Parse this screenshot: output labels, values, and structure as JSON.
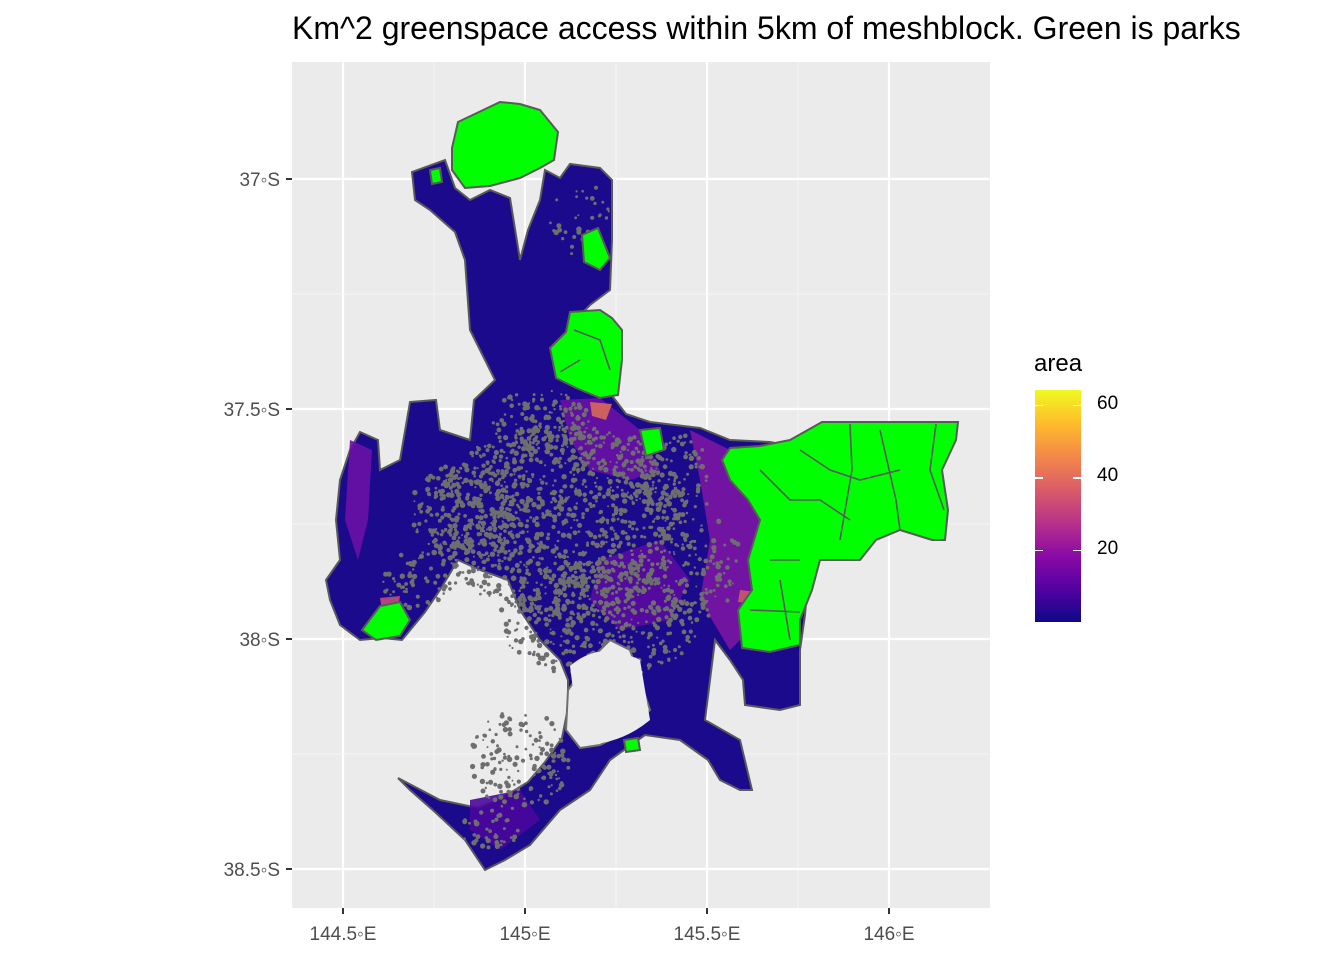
{
  "title": "Km^2 greenspace access within 5km of meshblock. Green is parks",
  "legend": {
    "title": "area",
    "ticks": [
      "20",
      "40",
      "60"
    ],
    "scale": {
      "min": 0,
      "max": 64,
      "colors": [
        "#0d0887",
        "#5302a3",
        "#8b0aa5",
        "#b83289",
        "#db5c68",
        "#f48849",
        "#febd2a",
        "#f0f921"
      ]
    }
  },
  "axes": {
    "x_ticks": [
      {
        "value": 144.5,
        "label": "144.5◦E"
      },
      {
        "value": 145.0,
        "label": "145◦E"
      },
      {
        "value": 145.5,
        "label": "145.5◦E"
      },
      {
        "value": 146.0,
        "label": "146◦E"
      }
    ],
    "y_ticks": [
      {
        "value": -37.0,
        "label": "37◦S"
      },
      {
        "value": -37.5,
        "label": "37.5◦S"
      },
      {
        "value": -38.0,
        "label": "38◦S"
      },
      {
        "value": -38.5,
        "label": "38.5◦S"
      }
    ]
  },
  "colors": {
    "panel_bg": "#ebebeb",
    "grid": "#ffffff",
    "park": "#00ff00",
    "park_outline": "#5a5a5a",
    "low": "#1b0a8c",
    "mid": "#5a0fa0"
  }
}
